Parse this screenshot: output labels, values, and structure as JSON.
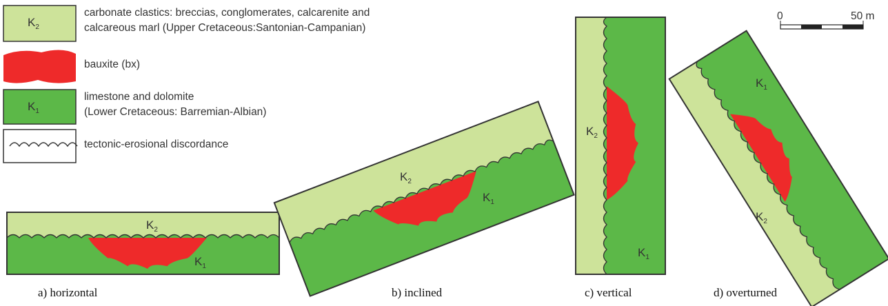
{
  "legend": [
    {
      "symbol": {
        "base": "K",
        "sub": "2"
      },
      "lines": [
        "carbonate clastics: breccias, conglomerates, calcarenite and",
        "calcareous marl (Upper Cretaceous:Santonian-Campanian)"
      ]
    },
    {
      "lines": [
        "bauxite (bx)"
      ]
    },
    {
      "symbol": {
        "base": "K",
        "sub": "1"
      },
      "lines": [
        "limestone and dolomite",
        "(Lower Cretaceous: Barremian-Albian)"
      ]
    },
    {
      "lines": [
        "tectonic-erosional discordance"
      ]
    }
  ],
  "panels": [
    {
      "caption": "a) horizontal",
      "labels": [
        {
          "base": "K",
          "sub": "2"
        },
        {
          "base": "K",
          "sub": "1"
        }
      ]
    },
    {
      "caption": "b) inclined",
      "labels": [
        {
          "base": "K",
          "sub": "2"
        },
        {
          "base": "K",
          "sub": "1"
        }
      ]
    },
    {
      "caption": "c) vertical",
      "labels": [
        {
          "base": "K",
          "sub": "2"
        },
        {
          "base": "K",
          "sub": "1"
        }
      ]
    },
    {
      "caption": "d) overturned",
      "labels": [
        {
          "base": "K",
          "sub": "1"
        },
        {
          "base": "K",
          "sub": "2"
        }
      ]
    }
  ],
  "scale": {
    "zero": "0",
    "length": "50 m"
  }
}
